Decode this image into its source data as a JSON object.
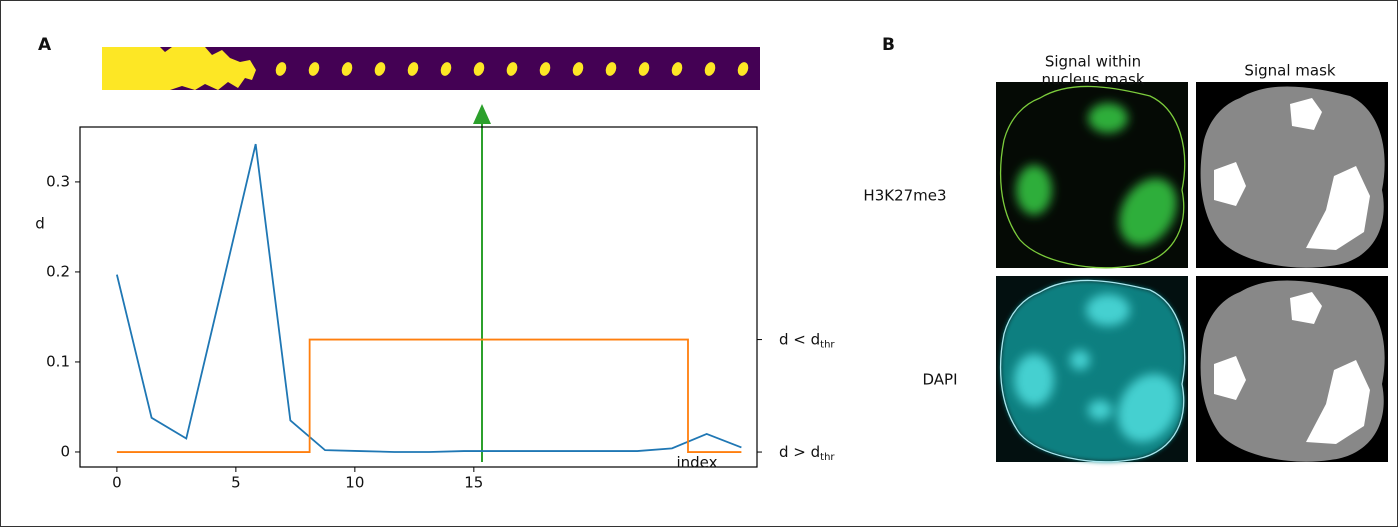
{
  "panel_labels": [
    "A",
    "B"
  ],
  "chart_data": {
    "type": "line",
    "xlabel": "index",
    "ylabel": "d",
    "xlim": [
      -1.55,
      26.9
    ],
    "xticks": [
      0,
      5,
      10,
      15
    ],
    "ylim": [
      -0.0167,
      0.361
    ],
    "yticks": [
      0,
      0.1,
      0.2,
      0.3
    ],
    "y2lim": [
      -0.133,
      2.89
    ],
    "y2ticks": [
      {
        "value": 0,
        "label": "d > d",
        "subscript": "thr"
      },
      {
        "value": 1,
        "label": "d < d",
        "subscript": "thr"
      }
    ],
    "series": [
      {
        "color": "#1f77b4",
        "x": [
          0,
          1.458,
          2.916,
          4.374,
          5.832,
          7.29,
          8.748,
          10.206,
          11.664,
          13.122,
          14.58,
          16.038,
          17.496,
          18.954,
          20.412,
          21.87,
          23.328,
          24.786,
          26.244
        ],
        "values": [
          0.197,
          0.038,
          0.015,
          0.178,
          0.342,
          0.035,
          0.002,
          0.001,
          0,
          0,
          0.001,
          0.001,
          0.001,
          0.001,
          0.001,
          0.001,
          0.004,
          0.02,
          0.005
        ]
      },
      {
        "color": "#ff7f0e",
        "axis": "y2",
        "x": [
          0,
          8.1,
          8.1,
          24.0,
          24.0,
          26.244
        ],
        "values": [
          0,
          0,
          1,
          1,
          0,
          0
        ]
      }
    ]
  },
  "images": {
    "columns": [
      [
        "Signal within",
        "nucleus mask"
      ],
      [
        "Signal mask"
      ]
    ],
    "rows": [
      "H3K27me3",
      "DAPI"
    ]
  }
}
